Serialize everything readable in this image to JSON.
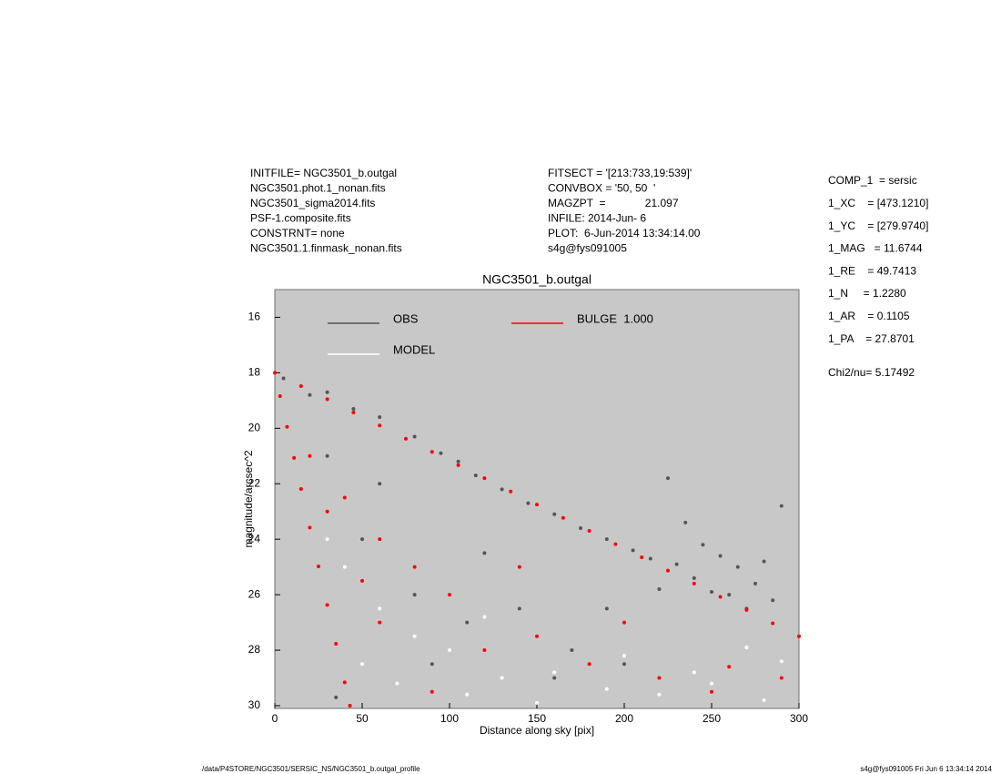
{
  "header": {
    "info_left": [
      "INITFILE= NGC3501_b.outgal",
      "NGC3501.phot.1_nonan.fits",
      "NGC3501_sigma2014.fits",
      "PSF-1.composite.fits",
      "CONSTRNT= none",
      "NGC3501.1.finmask_nonan.fits"
    ],
    "info_middle": [
      "FITSECT = '[213:733,19:539]'",
      "CONVBOX = '50, 50  '",
      "MAGZPT  =             21.097",
      "INFILE: 2014-Jun- 6",
      "PLOT:  6-Jun-2014 13:34:14.00",
      "s4g@fys091005"
    ],
    "params": [
      "COMP_1  = sersic",
      "1_XC    = [473.1210]",
      "1_YC    = [279.9740]",
      "1_MAG   = 11.6744",
      "1_RE    = 49.7413",
      "1_N     = 1.2280",
      "1_AR    = 0.1105",
      "1_PA    = 27.8701"
    ],
    "chi2": "Chi2/nu=      5.17492",
    "footer_left": "/data/P4STORE/NGC3501/SERSIC_NS/NGC3501_b.outgal_profile",
    "footer_right": "s4g@fys091005  Fri Jun  6 13:34:14 2014"
  },
  "chart_data": {
    "type": "scatter",
    "title": "NGC3501_b.outgal",
    "xlabel": "Distance along sky [pix]",
    "ylabel": "magnitude/arcsec^2",
    "xlim": [
      0,
      300
    ],
    "ylim": [
      30.1,
      15
    ],
    "xticks": [
      0,
      50,
      100,
      150,
      200,
      250,
      300
    ],
    "yticks": [
      16,
      18,
      20,
      22,
      24,
      26,
      28,
      30
    ],
    "background": "#c8c8c8",
    "series": [
      {
        "name": "OBS",
        "color": "#555555",
        "x": [
          5,
          20,
          30,
          45,
          60,
          80,
          95,
          105,
          115,
          130,
          145,
          160,
          175,
          190,
          205,
          215,
          225,
          235,
          245,
          255,
          265,
          275,
          285,
          290,
          240,
          260,
          280,
          220,
          230,
          270,
          250,
          35,
          50,
          80,
          110,
          140,
          170,
          200,
          60,
          30,
          120,
          90,
          160,
          190
        ],
        "values": [
          18.2,
          18.8,
          18.7,
          19.3,
          19.6,
          20.3,
          20.9,
          21.2,
          21.7,
          22.2,
          22.7,
          23.1,
          23.6,
          24.0,
          24.4,
          24.7,
          21.8,
          23.4,
          24.2,
          24.6,
          25.0,
          25.6,
          26.2,
          22.8,
          25.4,
          26.0,
          24.8,
          25.8,
          24.9,
          26.5,
          25.9,
          29.7,
          24,
          26,
          27,
          26.5,
          28,
          28.5,
          22,
          21,
          24.5,
          28.5,
          29,
          26.5
        ]
      },
      {
        "name": "MODEL",
        "color": "#ffffff",
        "x": [
          40,
          60,
          80,
          100,
          130,
          160,
          190,
          220,
          250,
          280,
          70,
          50,
          110,
          290,
          150,
          200,
          240,
          270,
          30,
          120
        ],
        "values": [
          25,
          26.5,
          27.5,
          28,
          29,
          28.8,
          29.4,
          29.6,
          29.2,
          29.8,
          29.2,
          28.5,
          29.6,
          28.4,
          29.9,
          28.2,
          28.8,
          27.9,
          24,
          26.8
        ]
      },
      {
        "name": "BULGE  1.000",
        "color": "#ff0000",
        "x": [
          0,
          15,
          30,
          45,
          60,
          75,
          90,
          105,
          120,
          135,
          150,
          165,
          180,
          195,
          210,
          225,
          240,
          255,
          270,
          285,
          300,
          3,
          7,
          11,
          15,
          20,
          25,
          30,
          35,
          40,
          43,
          20,
          40,
          60,
          80,
          100,
          60,
          120,
          150,
          180,
          220,
          260,
          90,
          50,
          30,
          140,
          200,
          250,
          290
        ],
        "values": [
          18.0,
          18.48,
          18.95,
          19.43,
          19.9,
          20.38,
          20.85,
          21.33,
          21.8,
          22.28,
          22.75,
          23.23,
          23.7,
          24.18,
          24.65,
          25.13,
          25.6,
          26.08,
          26.55,
          27.03,
          27.5,
          18.84,
          19.95,
          21.07,
          22.19,
          23.58,
          24.98,
          26.37,
          27.77,
          29.16,
          30.0,
          21,
          22.5,
          24,
          25,
          26,
          27,
          28,
          27.5,
          28.5,
          29,
          28.6,
          29.5,
          25.5,
          23,
          25,
          27,
          29.5,
          29
        ]
      }
    ]
  }
}
